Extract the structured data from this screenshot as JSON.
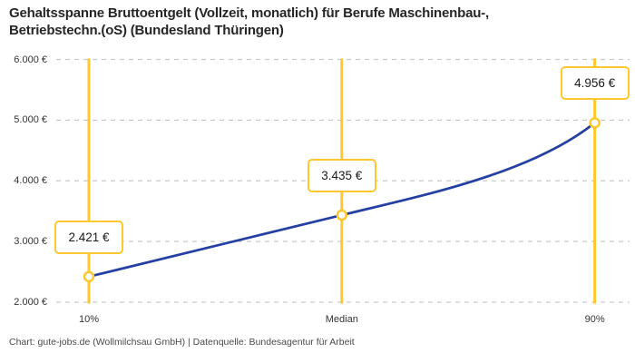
{
  "title_lines": [
    "Gehaltsspanne Bruttoentgelt (Vollzeit, monatlich) für Berufe Maschinenbau-,",
    "Betriebstechn.(oS) (Bundesland Thüringen)"
  ],
  "footer": "Chart: gute-jobs.de (Wollmilchsau GmbH) | Datenquelle: Bundesagentur für Arbeit",
  "colors": {
    "accent_yellow": "#FFC72E",
    "line_blue": "#2440A3",
    "grid_gray": "#C9C9C9",
    "title_text": "#262626",
    "tick_text": "#333333"
  },
  "chart_data": {
    "type": "line",
    "title": "Gehaltsspanne Bruttoentgelt (Vollzeit, monatlich) für Berufe Maschinenbau-, Betriebstechn.(oS) (Bundesland Thüringen)",
    "categories": [
      "10%",
      "Median",
      "90%"
    ],
    "values": [
      2421,
      3435,
      4956
    ],
    "value_labels": [
      "2.421 €",
      "3.435 €",
      "4.956 €"
    ],
    "ylim": [
      2000,
      6000
    ],
    "yticks": [
      2000,
      3000,
      4000,
      5000,
      6000
    ],
    "ytick_labels": [
      "2.000 €",
      "3.000 €",
      "4.000 €",
      "5.000 €",
      "6.000 €"
    ],
    "grid": "horizontal dashed gridlines on",
    "legend": "none",
    "annotations": "vertical yellow rule at each percentile with boxed value label above open-circle marker",
    "xlabel": "",
    "ylabel": ""
  }
}
